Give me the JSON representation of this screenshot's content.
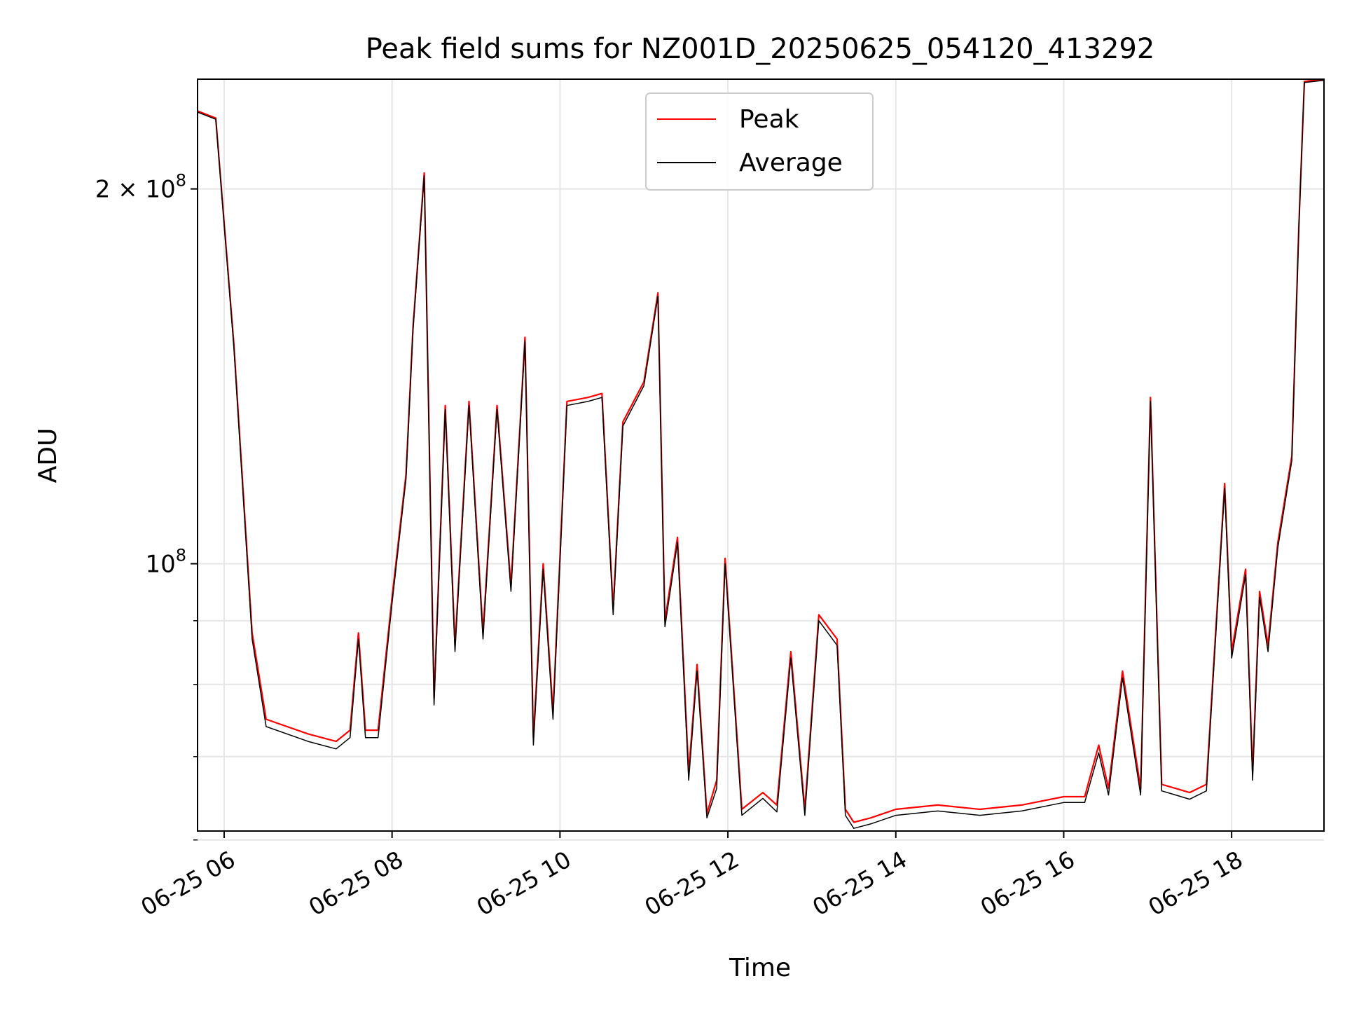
{
  "chart_data": {
    "type": "line",
    "title": "Peak field sums for NZ001D_20250625_054120_413292",
    "xlabel": "Time",
    "ylabel": "ADU",
    "xlim": [
      "2025-06-25T05:41",
      "2025-06-25T19:06"
    ],
    "ylim": [
      61000000,
      245000000
    ],
    "yscale": "log",
    "grid": true,
    "legend_position": "top-center",
    "x_ticks": [
      {
        "t": "2025-06-25T06:00",
        "label": "06-25 06"
      },
      {
        "t": "2025-06-25T08:00",
        "label": "06-25 08"
      },
      {
        "t": "2025-06-25T10:00",
        "label": "06-25 10"
      },
      {
        "t": "2025-06-25T12:00",
        "label": "06-25 12"
      },
      {
        "t": "2025-06-25T14:00",
        "label": "06-25 14"
      },
      {
        "t": "2025-06-25T16:00",
        "label": "06-25 16"
      },
      {
        "t": "2025-06-25T18:00",
        "label": "06-25 18"
      }
    ],
    "y_major_ticks": [
      {
        "value": 100000000,
        "base": "10",
        "exp": "8"
      },
      {
        "value": 200000000,
        "base": "2 × 10",
        "exp": "8"
      }
    ],
    "y_minor_ticks": [
      60000000,
      70000000,
      80000000,
      90000000
    ],
    "x": [
      "2025-06-25T05:41",
      "2025-06-25T05:54",
      "2025-06-25T06:07",
      "2025-06-25T06:20",
      "2025-06-25T06:30",
      "2025-06-25T07:00",
      "2025-06-25T07:20",
      "2025-06-25T07:30",
      "2025-06-25T07:36",
      "2025-06-25T07:41",
      "2025-06-25T07:50",
      "2025-06-25T08:00",
      "2025-06-25T08:10",
      "2025-06-25T08:15",
      "2025-06-25T08:23",
      "2025-06-25T08:30",
      "2025-06-25T08:38",
      "2025-06-25T08:45",
      "2025-06-25T08:55",
      "2025-06-25T09:05",
      "2025-06-25T09:15",
      "2025-06-25T09:25",
      "2025-06-25T09:35",
      "2025-06-25T09:41",
      "2025-06-25T09:48",
      "2025-06-25T09:55",
      "2025-06-25T10:05",
      "2025-06-25T10:20",
      "2025-06-25T10:30",
      "2025-06-25T10:38",
      "2025-06-25T10:45",
      "2025-06-25T11:00",
      "2025-06-25T11:10",
      "2025-06-25T11:15",
      "2025-06-25T11:24",
      "2025-06-25T11:32",
      "2025-06-25T11:38",
      "2025-06-25T11:45",
      "2025-06-25T11:52",
      "2025-06-25T11:58",
      "2025-06-25T12:10",
      "2025-06-25T12:25",
      "2025-06-25T12:35",
      "2025-06-25T12:45",
      "2025-06-25T12:55",
      "2025-06-25T13:05",
      "2025-06-25T13:18",
      "2025-06-25T13:24",
      "2025-06-25T13:30",
      "2025-06-25T13:42",
      "2025-06-25T14:00",
      "2025-06-25T14:30",
      "2025-06-25T15:00",
      "2025-06-25T15:30",
      "2025-06-25T16:00",
      "2025-06-25T16:15",
      "2025-06-25T16:25",
      "2025-06-25T16:32",
      "2025-06-25T16:42",
      "2025-06-25T16:55",
      "2025-06-25T17:02",
      "2025-06-25T17:10",
      "2025-06-25T17:20",
      "2025-06-25T17:30",
      "2025-06-25T17:42",
      "2025-06-25T17:55",
      "2025-06-25T18:00",
      "2025-06-25T18:10",
      "2025-06-25T18:15",
      "2025-06-25T18:20",
      "2025-06-25T18:26",
      "2025-06-25T18:33",
      "2025-06-25T18:43",
      "2025-06-25T18:48",
      "2025-06-25T18:52",
      "2025-06-25T19:06"
    ],
    "series": [
      {
        "name": "Peak",
        "color": "#ff0000",
        "values": [
          231000000,
          228000000,
          150000000,
          88000000,
          75000000,
          73000000,
          72000000,
          73500000,
          88000000,
          73500000,
          73500000,
          94000000,
          118000000,
          155000000,
          206000000,
          78000000,
          134000000,
          86000000,
          135000000,
          88000000,
          134000000,
          96000000,
          152000000,
          72500000,
          100000000,
          76000000,
          135000000,
          136000000,
          137000000,
          92000000,
          130000000,
          140000000,
          165000000,
          90000000,
          105000000,
          68000000,
          83000000,
          63000000,
          67000000,
          101000000,
          63500000,
          65500000,
          64000000,
          85000000,
          63500000,
          91000000,
          87000000,
          63500000,
          62000000,
          62500000,
          63500000,
          64000000,
          63500000,
          64000000,
          65000000,
          65000000,
          71500000,
          66000000,
          82000000,
          66000000,
          136000000,
          66500000,
          66000000,
          65500000,
          66500000,
          116000000,
          85000000,
          99000000,
          68000000,
          95000000,
          86000000,
          104000000,
          122000000,
          186000000,
          244000000,
          245000000
        ]
      },
      {
        "name": "Average",
        "color": "#000000",
        "values": [
          230500000,
          227500000,
          149000000,
          87000000,
          74000000,
          72000000,
          71000000,
          72500000,
          87000000,
          72500000,
          72500000,
          93000000,
          117000000,
          154000000,
          205000000,
          77000000,
          133000000,
          85000000,
          134000000,
          87000000,
          133000000,
          95000000,
          151000000,
          71500000,
          99000000,
          75000000,
          134000000,
          135000000,
          136000000,
          91000000,
          129000000,
          139000000,
          164000000,
          89000000,
          104000000,
          67000000,
          82000000,
          62500000,
          66000000,
          100000000,
          62800000,
          64800000,
          63200000,
          84000000,
          62800000,
          90000000,
          86000000,
          62800000,
          61300000,
          61800000,
          62800000,
          63300000,
          62800000,
          63300000,
          64300000,
          64300000,
          70500000,
          65200000,
          81000000,
          65200000,
          135000000,
          65700000,
          65200000,
          64700000,
          65700000,
          115000000,
          84000000,
          98000000,
          67000000,
          94000000,
          85000000,
          103000000,
          121000000,
          185000000,
          243500000,
          244500000
        ]
      }
    ]
  }
}
